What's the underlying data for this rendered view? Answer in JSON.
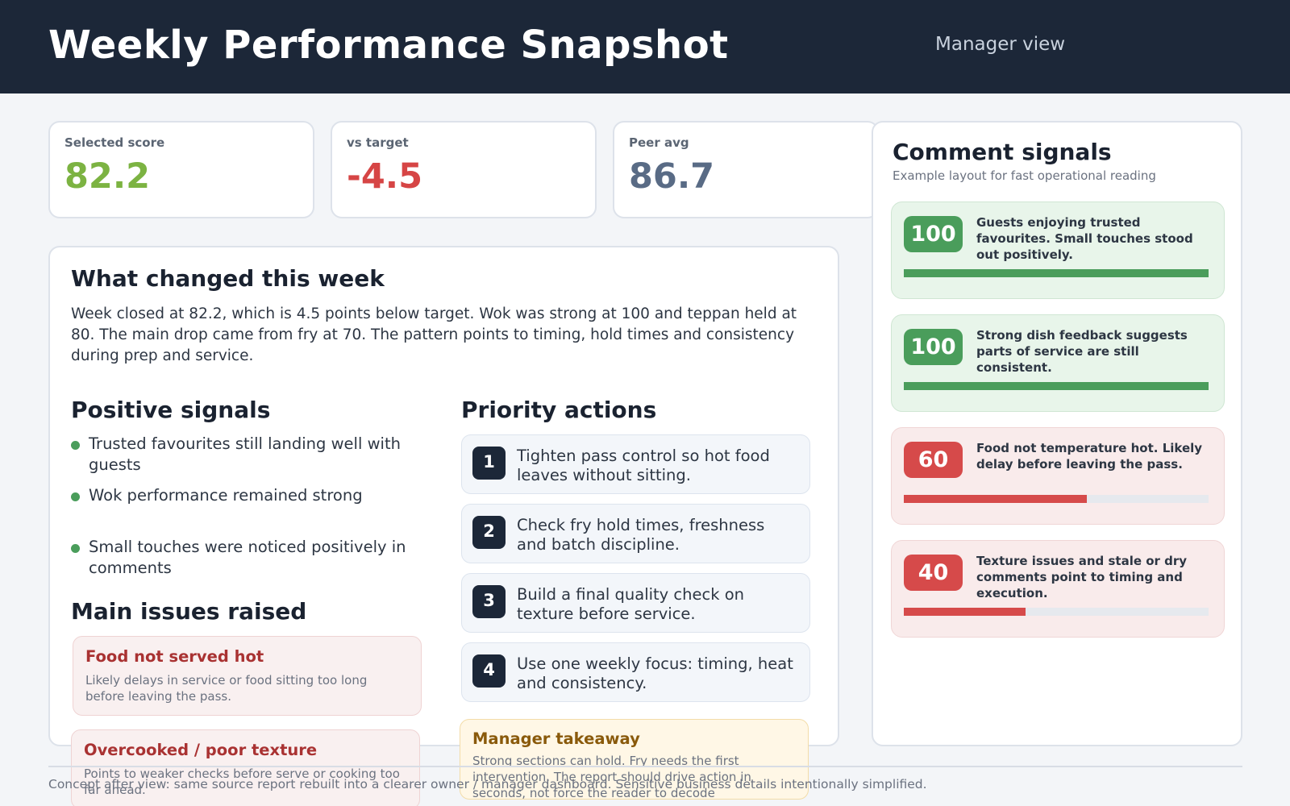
{
  "header": {
    "title": "Weekly Performance Snapshot",
    "view": "Manager view"
  },
  "kpis": [
    {
      "label": "Selected score",
      "value": "82.2",
      "color": "#7cb342"
    },
    {
      "label": "vs target",
      "value": "-4.5",
      "color": "#d64545"
    },
    {
      "label": "Peer avg",
      "value": "86.7",
      "color": "#596b85"
    }
  ],
  "summary": {
    "title": "What changed this week",
    "text": "Week closed at 82.2, which is 4.5 points below target. Wok was strong at 100 and teppan held at 80. The main drop came from fry at 70. The pattern points to timing, hold times and consistency during prep and service."
  },
  "positive": {
    "title": "Positive signals",
    "items": [
      "Trusted favourites still landing well with guests",
      "Wok performance remained strong",
      "Small touches were noticed positively in comments"
    ]
  },
  "issues": {
    "title": "Main issues raised",
    "items": [
      {
        "title": "Food not served hot",
        "text": "Likely delays in service or food sitting too long before leaving the pass."
      },
      {
        "title": "Overcooked / poor texture",
        "text": "Points to weaker checks before serve or cooking too far ahead."
      }
    ]
  },
  "actions": {
    "title": "Priority actions",
    "items": [
      {
        "num": "1",
        "text": "Tighten pass control so hot food leaves without sitting."
      },
      {
        "num": "2",
        "text": "Check fry hold times, freshness and batch discipline."
      },
      {
        "num": "3",
        "text": "Build a final quality check on texture before service."
      },
      {
        "num": "4",
        "text": "Use one weekly focus: timing, heat and consistency."
      }
    ]
  },
  "takeaway": {
    "title": "Manager takeaway",
    "text": "Strong sections can hold. Fry needs the first intervention. The report should drive action in seconds, not force the reader to decode"
  },
  "comments": {
    "title": "Comment signals",
    "subtitle": "Example layout for fast operational reading",
    "items": [
      {
        "score": "100",
        "fill": 1.0,
        "tone": "pos",
        "text": "Guests enjoying trusted favourites. Small touches stood out positively."
      },
      {
        "score": "100",
        "fill": 1.0,
        "tone": "pos",
        "text": "Strong dish feedback suggests parts of service are still consistent."
      },
      {
        "score": "60",
        "fill": 0.6,
        "tone": "neg",
        "text": "Food not temperature hot. Likely delay before leaving the pass."
      },
      {
        "score": "40",
        "fill": 0.4,
        "tone": "neg",
        "text": "Texture issues and stale or dry comments point to timing and execution."
      }
    ]
  },
  "colors": {
    "positive": "#4a9d5b",
    "negative": "#d64a4a"
  },
  "footer": "Concept after view: same source report rebuilt into a clearer owner / manager dashboard. Sensitive business details intentionally simplified."
}
